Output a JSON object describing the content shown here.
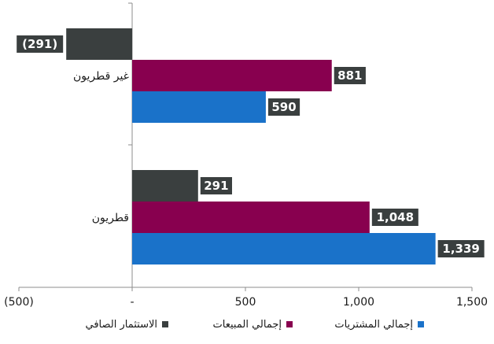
{
  "chart_data": {
    "type": "bar",
    "orientation": "horizontal",
    "categories": [
      "غير قطريون",
      "قطريون"
    ],
    "series": [
      {
        "name": "الاستثمار الصافي",
        "color": "#3a3f3f",
        "values": [
          -291,
          291
        ],
        "labels": [
          "(291)",
          "291"
        ]
      },
      {
        "name": "إجمالي المبيعات",
        "color": "#88004f",
        "values": [
          881,
          1048
        ],
        "labels": [
          "881",
          "1,048"
        ]
      },
      {
        "name": "إجمالي المشتريات",
        "color": "#1a72c9",
        "values": [
          590,
          1339
        ],
        "labels": [
          "590",
          "1,339"
        ]
      }
    ],
    "xlim": [
      -500,
      1500
    ],
    "xticks": [
      -500,
      0,
      500,
      1000,
      1500
    ],
    "xtick_labels": [
      "(500)",
      "-",
      "500",
      "1,000",
      "1,500"
    ],
    "grid": false,
    "legend_position": "bottom"
  }
}
